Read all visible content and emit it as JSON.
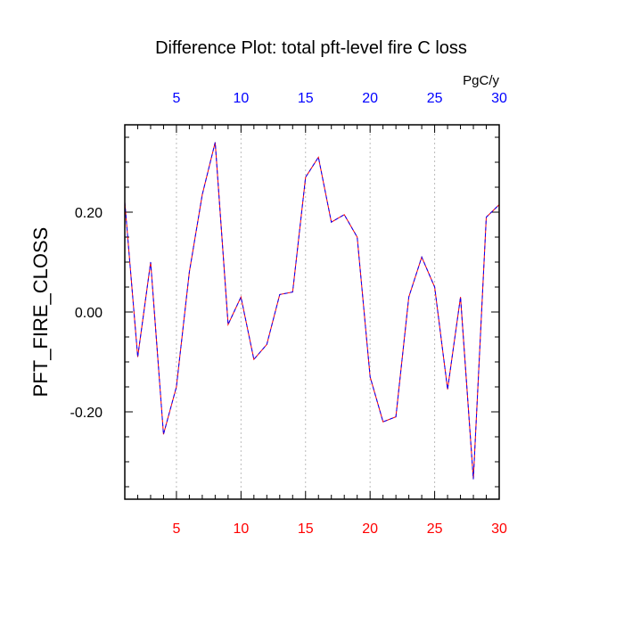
{
  "chart_data": {
    "type": "line",
    "title": "Difference Plot: total pft-level fire C loss",
    "units": "PgC/y",
    "ylabel": "PFT_FIRE_CLOSS",
    "xlim": [
      1,
      30
    ],
    "ylim": [
      -0.375,
      0.375
    ],
    "x_ticks": [
      5,
      10,
      15,
      20,
      25,
      30
    ],
    "y_ticks": [
      -0.2,
      0.0,
      0.2
    ],
    "y_tick_labels": [
      "-0.20",
      "0.00",
      "0.20"
    ],
    "grid": "vertical dashed at major x ticks",
    "colors": {
      "bottom_axis_labels": "#ff0000",
      "top_axis_labels": "#0000ff",
      "series_a": "#ff0000",
      "series_b": "#0000ff"
    },
    "series": [
      {
        "x": [
          1,
          2,
          3,
          4,
          5,
          6,
          7,
          8,
          9,
          10,
          11,
          12,
          13,
          14,
          15,
          16,
          17,
          18,
          19,
          20,
          21,
          22,
          23,
          24,
          25,
          26,
          27,
          28,
          29,
          30
        ],
        "values": [
          0.22,
          -0.09,
          0.1,
          -0.245,
          -0.15,
          0.08,
          0.235,
          0.34,
          -0.025,
          0.03,
          -0.095,
          -0.065,
          0.035,
          0.04,
          0.27,
          0.31,
          0.18,
          0.195,
          0.15,
          -0.13,
          -0.22,
          -0.21,
          0.03,
          0.11,
          0.05,
          -0.155,
          0.03,
          -0.335,
          0.19,
          0.215
        ]
      },
      {
        "x": [
          1,
          2,
          3,
          4,
          5,
          6,
          7,
          8,
          9,
          10,
          11,
          12,
          13,
          14,
          15,
          16,
          17,
          18,
          19,
          20,
          21,
          22,
          23,
          24,
          25,
          26,
          27,
          28,
          29,
          30
        ],
        "values": [
          0.22,
          -0.09,
          0.1,
          -0.245,
          -0.15,
          0.08,
          0.235,
          0.34,
          -0.025,
          0.03,
          -0.095,
          -0.065,
          0.035,
          0.04,
          0.27,
          0.31,
          0.18,
          0.195,
          0.15,
          -0.13,
          -0.22,
          -0.21,
          0.03,
          0.11,
          0.05,
          -0.155,
          0.03,
          -0.335,
          0.19,
          0.215
        ]
      }
    ]
  }
}
